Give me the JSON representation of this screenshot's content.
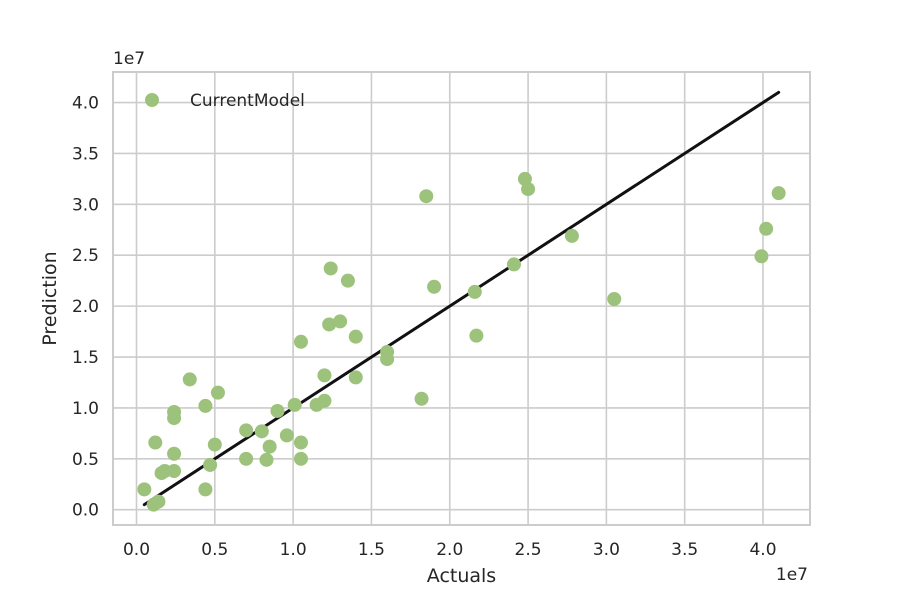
{
  "chart_data": {
    "type": "scatter",
    "xlabel": "Actuals",
    "ylabel": "Prediction",
    "x_offset_label": "1e7",
    "y_offset_label": "1e7",
    "xlim": [
      -1500000,
      43000000
    ],
    "ylim": [
      -1500000,
      43000000
    ],
    "x_ticks": [
      0,
      5000000,
      10000000,
      15000000,
      20000000,
      25000000,
      30000000,
      35000000,
      40000000
    ],
    "x_tick_labels": [
      "0.0",
      "0.5",
      "1.0",
      "1.5",
      "2.0",
      "2.5",
      "3.0",
      "3.5",
      "4.0"
    ],
    "y_ticks": [
      0,
      5000000,
      10000000,
      15000000,
      20000000,
      25000000,
      30000000,
      35000000,
      40000000
    ],
    "y_tick_labels": [
      "0.0",
      "0.5",
      "1.0",
      "1.5",
      "2.0",
      "2.5",
      "3.0",
      "3.5",
      "4.0"
    ],
    "grid": true,
    "legend_position": "top-left",
    "series": [
      {
        "name": "CurrentModel",
        "color": "#9cc27b",
        "points": [
          [
            500000,
            2000000
          ],
          [
            1100000,
            500000
          ],
          [
            1400000,
            800000
          ],
          [
            1200000,
            6600000
          ],
          [
            1600000,
            3600000
          ],
          [
            1800000,
            3800000
          ],
          [
            2400000,
            3800000
          ],
          [
            2400000,
            5500000
          ],
          [
            2400000,
            9000000
          ],
          [
            2400000,
            9600000
          ],
          [
            3400000,
            12800000
          ],
          [
            4400000,
            2000000
          ],
          [
            4400000,
            10200000
          ],
          [
            4700000,
            4400000
          ],
          [
            5000000,
            6400000
          ],
          [
            5200000,
            11500000
          ],
          [
            7000000,
            5000000
          ],
          [
            7000000,
            7800000
          ],
          [
            8000000,
            7700000
          ],
          [
            8300000,
            4900000
          ],
          [
            8500000,
            6200000
          ],
          [
            9000000,
            9700000
          ],
          [
            9600000,
            7300000
          ],
          [
            10100000,
            10300000
          ],
          [
            10500000,
            5000000
          ],
          [
            10500000,
            6600000
          ],
          [
            10500000,
            16500000
          ],
          [
            11500000,
            10300000
          ],
          [
            12000000,
            10700000
          ],
          [
            12000000,
            13200000
          ],
          [
            12300000,
            18200000
          ],
          [
            12400000,
            23700000
          ],
          [
            13000000,
            18500000
          ],
          [
            13500000,
            22500000
          ],
          [
            14000000,
            13000000
          ],
          [
            14000000,
            17000000
          ],
          [
            16000000,
            14800000
          ],
          [
            16000000,
            15500000
          ],
          [
            18200000,
            10900000
          ],
          [
            18500000,
            30800000
          ],
          [
            19000000,
            21900000
          ],
          [
            21600000,
            21400000
          ],
          [
            21700000,
            17100000
          ],
          [
            24100000,
            24100000
          ],
          [
            24800000,
            32500000
          ],
          [
            25000000,
            31500000
          ],
          [
            27800000,
            26900000
          ],
          [
            30500000,
            20700000
          ],
          [
            39900000,
            24900000
          ],
          [
            40200000,
            27600000
          ],
          [
            41000000,
            31100000
          ]
        ]
      }
    ],
    "reference_line": {
      "color": "#111111",
      "from": [
        500000,
        500000
      ],
      "to": [
        41000000,
        41000000
      ]
    }
  }
}
